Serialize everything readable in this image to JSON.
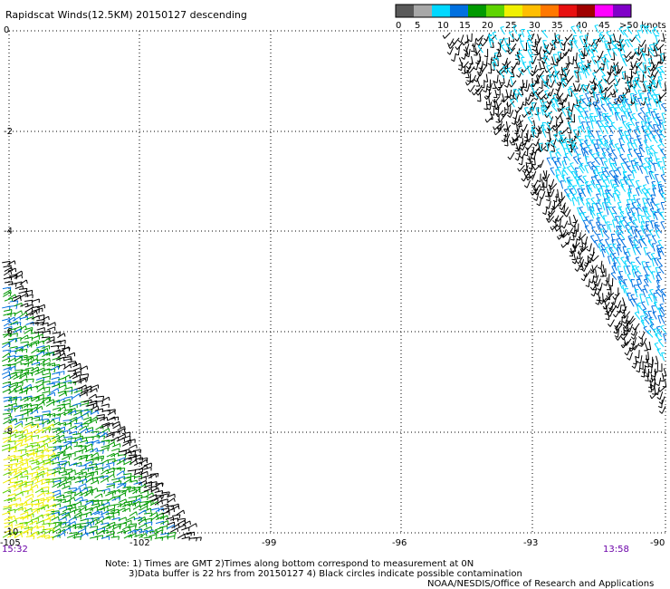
{
  "title": "Rapidscat Winds(12.5KM) 20150127 descending",
  "legend": {
    "labels": [
      "0",
      "5",
      "10",
      "15",
      "20",
      "25",
      "30",
      "35",
      "40",
      "45",
      ">50 knots"
    ],
    "colors": [
      "#5a5a5a",
      "#a8a8a8",
      "#00d8ff",
      "#0070e0",
      "#009a00",
      "#5ed400",
      "#f0f000",
      "#ffbe00",
      "#ff7800",
      "#e81010",
      "#a00000",
      "#ff00ff",
      "#8000c8"
    ]
  },
  "axes": {
    "lon_ticks": [
      "-105",
      "-102",
      "-99",
      "-96",
      "-93",
      "-90"
    ],
    "lat_ticks": [
      "0",
      "-2",
      "-4",
      "-6",
      "-8",
      "-10"
    ]
  },
  "times": {
    "left": "15:32",
    "right": "13:58"
  },
  "notes": {
    "line1": "Note: 1) Times are GMT 2)Times along bottom correspond to measurement at 0N",
    "line2": "3)Data buffer is 22 hrs from 20150127 4) Black circles indicate possible contamination",
    "line3": "NOAA/NESDIS/Office of Research and Applications"
  },
  "palette": {
    "black": "#000000",
    "lightblue": "#00d8ff",
    "blue": "#0070e0",
    "green": "#009a00",
    "lightgreen": "#5ed400",
    "yellow": "#f0f000"
  }
}
